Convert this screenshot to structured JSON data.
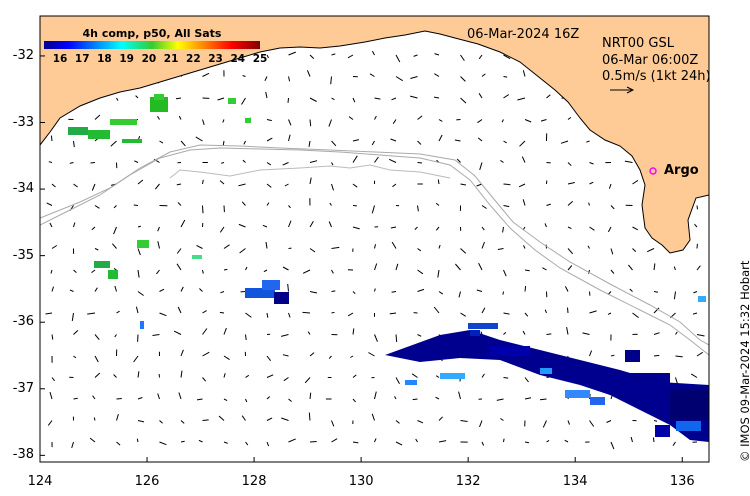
{
  "map": {
    "title_date": "06-Mar-2024 16Z",
    "product": [
      "NRT00 GSL",
      "06-Mar 06:00Z",
      "0.5m/s (1kt 24h)"
    ],
    "argo_label": "Argo",
    "credit": "© IMOS 09-Mar-2024 15:32 Hobart",
    "lon_ticks": [
      "124",
      "126",
      "128",
      "130",
      "132",
      "134",
      "136"
    ],
    "lat_ticks": [
      "-32",
      "-33",
      "-34",
      "-35",
      "-36",
      "-37",
      "-38"
    ],
    "lon_range": [
      124,
      136.5
    ],
    "lat_range": [
      -38.1,
      -31.4
    ]
  },
  "colorbar": {
    "title": "4h comp, p50, All Sats",
    "ticks": [
      "16",
      "17",
      "18",
      "19",
      "20",
      "21",
      "22",
      "23",
      "24",
      "25"
    ],
    "range": [
      16,
      25
    ]
  },
  "colors": {
    "land": "#fecb96",
    "coast": "#000000",
    "isobath": "#aaaaaa",
    "argo": "#ff00ff"
  }
}
